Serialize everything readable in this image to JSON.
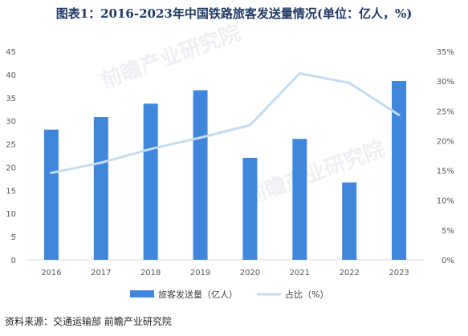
{
  "title": "图表1：2016-2023年中国铁路旅客发送量情况(单位：亿人，%)",
  "source": "资料来源：交通运输部 前瞻产业研究院",
  "watermark": "前瞻产业研究院",
  "colors": {
    "bar": "#3f86dc",
    "line": "#c6dcf1",
    "title": "#1f3864"
  },
  "chart_data": {
    "type": "bar",
    "categories": [
      "2016",
      "2017",
      "2018",
      "2019",
      "2020",
      "2021",
      "2022",
      "2023"
    ],
    "series": [
      {
        "name": "旅客发送量（亿人）",
        "type": "bar",
        "axis": "left",
        "values": [
          28.1,
          30.8,
          33.7,
          36.6,
          22.0,
          26.1,
          16.7,
          38.6
        ]
      },
      {
        "name": "占比（%）",
        "type": "line",
        "axis": "right",
        "values": [
          14.6,
          16.3,
          18.6,
          20.5,
          22.6,
          31.3,
          29.7,
          24.3
        ]
      }
    ],
    "yticks_left": [
      "0",
      "5",
      "10",
      "15",
      "20",
      "25",
      "30",
      "35",
      "40",
      "45"
    ],
    "yticks_right": [
      "0%",
      "5%",
      "10%",
      "15%",
      "20%",
      "25%",
      "30%",
      "35%"
    ],
    "ylim_left": [
      0,
      45
    ],
    "ylim_right": [
      0,
      35
    ],
    "grid": false,
    "legend_position": "bottom"
  }
}
